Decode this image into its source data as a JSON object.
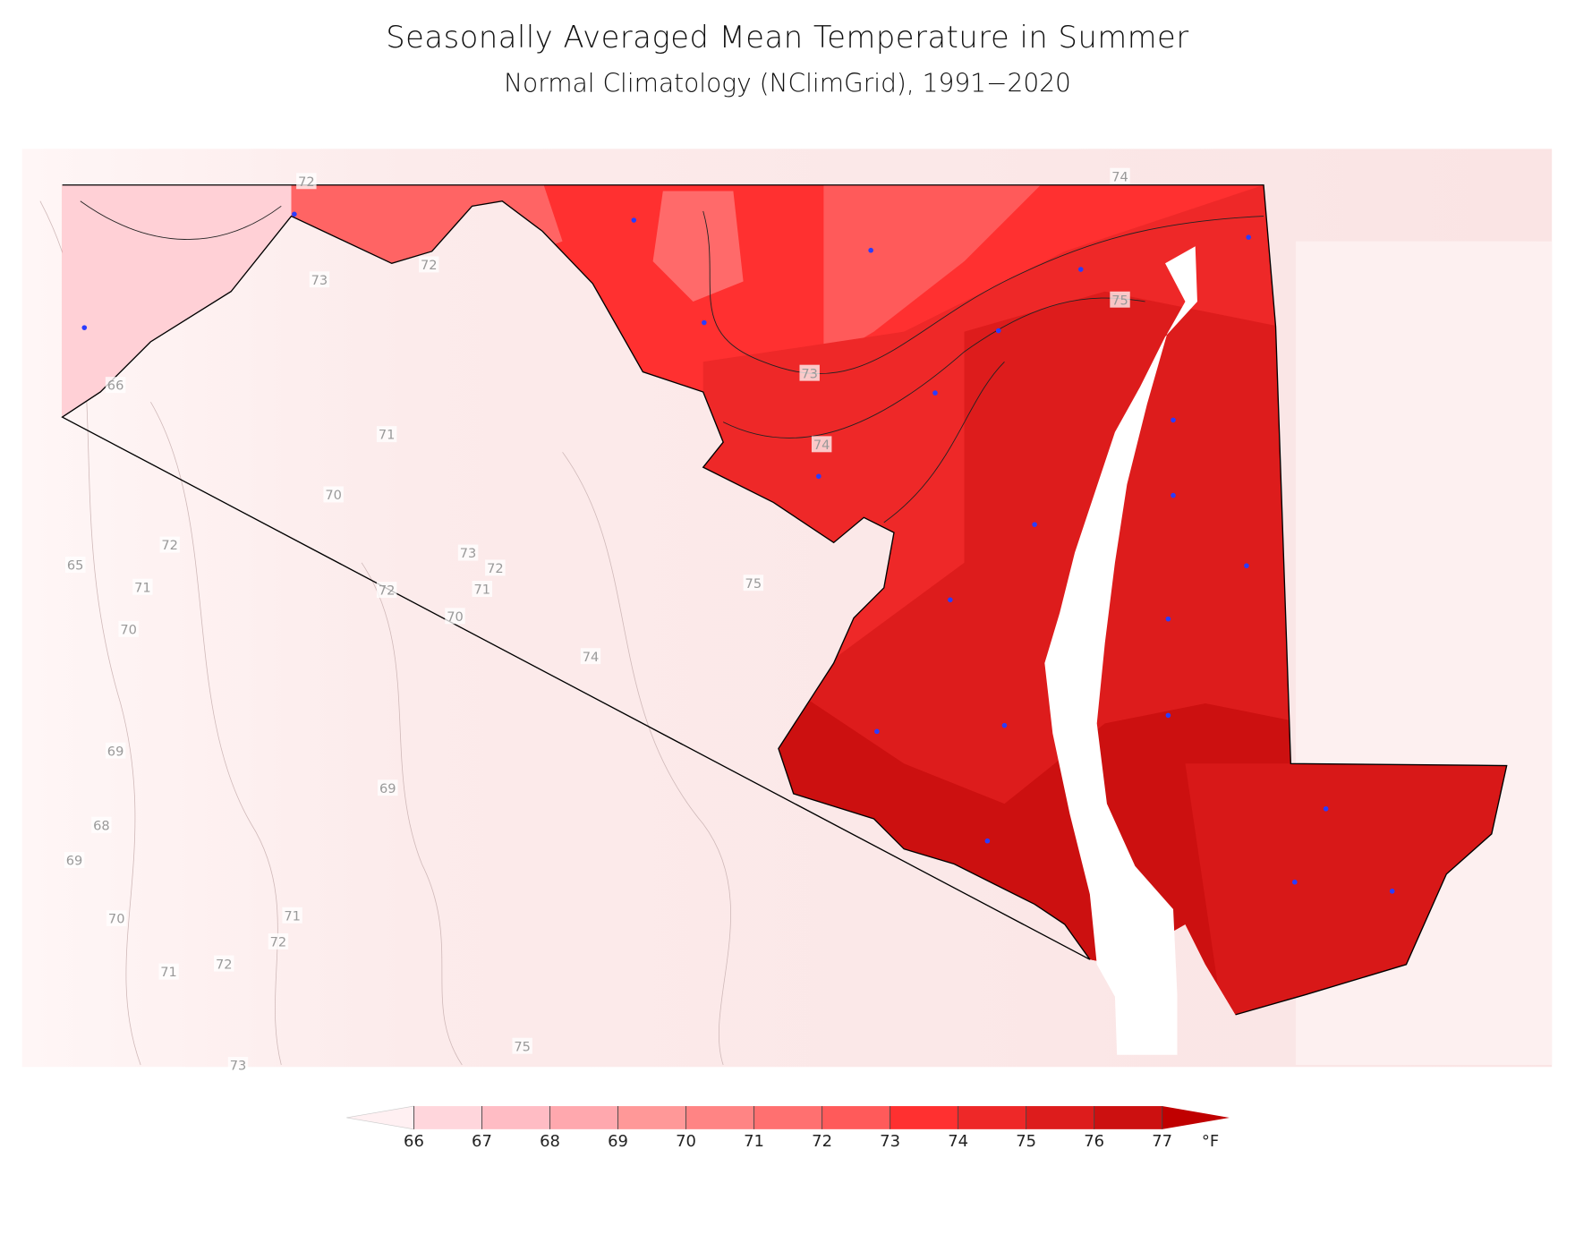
{
  "header": {
    "title": "Seasonally Averaged Mean Temperature in Summer",
    "subtitle": "Normal Climatology (NClimGrid), 1991−2020"
  },
  "map": {
    "contour_labels": [
      72,
      74,
      73,
      72,
      75,
      66,
      73,
      71,
      74,
      70,
      72,
      65,
      73,
      72,
      71,
      72,
      71,
      75,
      70,
      70,
      74,
      69,
      69,
      68,
      69,
      70,
      71,
      72,
      71,
      72,
      75,
      73
    ]
  },
  "colorbar": {
    "ticks": [
      66,
      67,
      68,
      69,
      70,
      71,
      72,
      73,
      74,
      75,
      76,
      77
    ],
    "unit": "°F",
    "colors": [
      "#fff0f2",
      "#ffd6dc",
      "#ffbcc4",
      "#ffa8ae",
      "#ff9898",
      "#ff8484",
      "#ff7070",
      "#ff5a5a",
      "#ff3030",
      "#ee2828",
      "#dd1c1c",
      "#cc1010",
      "#c00000"
    ]
  }
}
